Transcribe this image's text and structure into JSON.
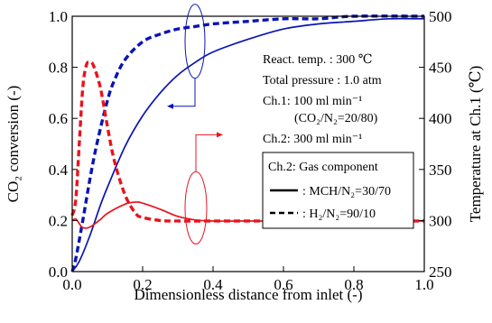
{
  "chart_data": {
    "type": "line",
    "xlabel": "Dimensionless distance from inlet (-)",
    "ylabel_left": "CO₂ conversion (-)",
    "ylabel_right": "Temperature at Ch.1 (℃)",
    "xlim": [
      0.0,
      1.0
    ],
    "ylim_left": [
      0.0,
      1.0
    ],
    "ylim_right": [
      250,
      500
    ],
    "x_ticks": [
      "0.0",
      "0.2",
      "0.4",
      "0.6",
      "0.8",
      "1.0"
    ],
    "y_left_ticks": [
      "0.0",
      "0.2",
      "0.4",
      "0.6",
      "0.8",
      "1.0"
    ],
    "y_right_ticks": [
      "250",
      "300",
      "350",
      "400",
      "450",
      "500"
    ],
    "grid": false,
    "colors": {
      "conversion": "#0a14b4",
      "temperature": "#e8141e"
    },
    "conditions": [
      "React. temp. : 300 ℃",
      "Total pressure : 1.0 atm",
      "Ch.1: 100 ml min⁻¹",
      "(CO₂/N₂=20/80)",
      "Ch.2: 300 ml min⁻¹"
    ],
    "legend": {
      "title": "Ch.2: Gas component",
      "entries": [
        {
          "label": ": MCH/N₂=30/70",
          "style": "solid"
        },
        {
          "label": ": H₂/N₂=90/10",
          "style": "dashed"
        }
      ],
      "placement": "center-right"
    },
    "series": [
      {
        "name": "MCH/N₂=30/70",
        "quantity": "CO2 conversion",
        "axis": "left",
        "style": "solid",
        "color": "#0a14b4",
        "x": [
          0.0,
          0.02,
          0.05,
          0.08,
          0.1,
          0.15,
          0.2,
          0.25,
          0.3,
          0.35,
          0.4,
          0.5,
          0.6,
          0.7,
          0.8,
          0.9,
          1.0
        ],
        "y": [
          0.0,
          0.04,
          0.14,
          0.26,
          0.33,
          0.49,
          0.61,
          0.7,
          0.77,
          0.82,
          0.86,
          0.91,
          0.95,
          0.97,
          0.98,
          0.99,
          0.99
        ]
      },
      {
        "name": "H₂/N₂=90/10",
        "quantity": "CO2 conversion",
        "axis": "left",
        "style": "dashed",
        "color": "#0a14b4",
        "x": [
          0.0,
          0.01,
          0.03,
          0.05,
          0.07,
          0.1,
          0.12,
          0.15,
          0.2,
          0.25,
          0.3,
          0.35,
          0.4,
          0.5,
          0.6,
          0.7,
          0.8,
          1.0
        ],
        "y": [
          0.0,
          0.05,
          0.2,
          0.36,
          0.5,
          0.67,
          0.75,
          0.83,
          0.9,
          0.93,
          0.95,
          0.96,
          0.97,
          0.98,
          0.99,
          0.99,
          1.0,
          1.0
        ]
      },
      {
        "name": "MCH/N₂=30/70",
        "quantity": "Temperature at Ch.1",
        "axis": "right",
        "style": "solid",
        "color": "#e8141e",
        "x": [
          0.0,
          0.01,
          0.02,
          0.03,
          0.05,
          0.08,
          0.1,
          0.15,
          0.18,
          0.2,
          0.25,
          0.3,
          0.35,
          0.4,
          0.5,
          0.6,
          0.8,
          1.0
        ],
        "y": [
          300,
          301.5,
          297,
          293,
          293.5,
          301,
          307,
          316,
          318,
          317,
          311,
          304,
          300.5,
          299.5,
          299.5,
          299.5,
          299.5,
          299.5
        ]
      },
      {
        "name": "H₂/N₂=90/10",
        "quantity": "Temperature at Ch.1",
        "axis": "right",
        "style": "dashed",
        "color": "#e8141e",
        "x": [
          0.0,
          0.01,
          0.02,
          0.03,
          0.04,
          0.05,
          0.06,
          0.08,
          0.1,
          0.12,
          0.15,
          0.18,
          0.2,
          0.25,
          0.3,
          0.4,
          0.5,
          1.0
        ],
        "y": [
          305,
          320,
          375,
          430,
          452,
          455,
          452,
          430,
          392,
          358,
          325,
          307,
          303,
          300,
          299.5,
          299.5,
          299.5,
          299.5
        ]
      }
    ],
    "annotations": [
      {
        "target_axis": "left",
        "series_group": "CO2 conversion",
        "near_x": 0.4,
        "near_y_left": 0.87
      },
      {
        "target_axis": "right",
        "series_group": "Temperature at Ch.1",
        "near_x": 0.4,
        "near_y_right": 315
      }
    ]
  }
}
